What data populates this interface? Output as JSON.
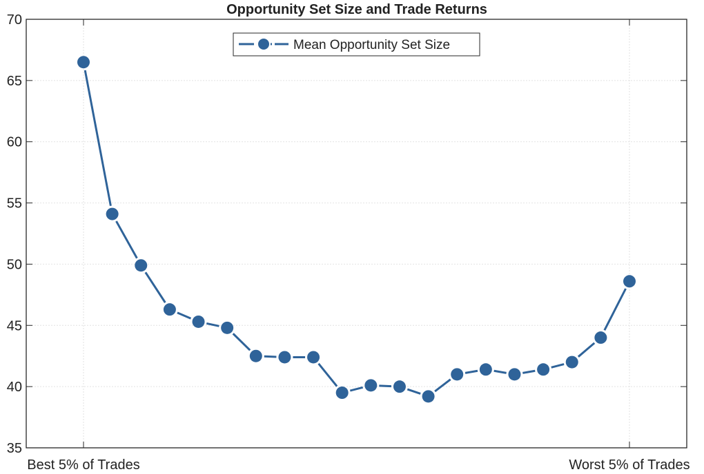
{
  "chart_data": {
    "type": "line",
    "title": "Opportunity Set Size and Trade Returns",
    "xlabel": "",
    "ylabel": "",
    "ylim": [
      35,
      70
    ],
    "yticks": [
      35,
      40,
      45,
      50,
      55,
      60,
      65,
      70
    ],
    "x_tick_labels": [
      "Best 5% of Trades",
      "Worst 5% of Trades"
    ],
    "grid": true,
    "legend_position": "top-center",
    "series": [
      {
        "name": "Mean Opportunity Set Size",
        "color": "#2f6399",
        "x": [
          1,
          2,
          3,
          4,
          5,
          6,
          7,
          8,
          9,
          10,
          11,
          12,
          13,
          14,
          15,
          16,
          17,
          18,
          19,
          20
        ],
        "values": [
          66.5,
          54.1,
          49.9,
          46.3,
          45.3,
          44.8,
          42.5,
          42.4,
          42.4,
          39.5,
          40.1,
          40.0,
          39.2,
          41.0,
          41.4,
          41.0,
          41.4,
          42.0,
          44.0,
          48.6
        ]
      }
    ]
  }
}
